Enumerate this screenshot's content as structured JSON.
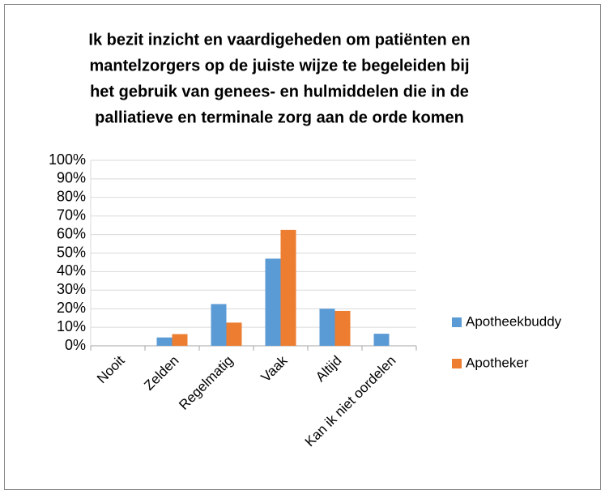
{
  "chart_data": {
    "type": "bar",
    "title": [
      "Ik bezit inzicht en vaardigeheden om patiënten en",
      "mantelzorgers op de juiste wijze te begeleiden bij",
      "het gebruik van genees- en hulmiddelen die in de",
      "palliatieve en terminale zorg aan de orde komen"
    ],
    "categories": [
      "Nooit",
      "Zelden",
      "Regelmatig",
      "Vaak",
      "Altijd",
      "Kan ik niet oordelen"
    ],
    "series": [
      {
        "name": "Apotheekbuddy",
        "color": "#5b9bd5",
        "values": [
          0,
          4.5,
          22.5,
          47,
          20,
          6.5
        ]
      },
      {
        "name": "Apotheker",
        "color": "#ed7d31",
        "values": [
          0,
          6.3,
          12.5,
          62.5,
          18.8,
          0
        ]
      }
    ],
    "ylim": [
      0,
      100
    ],
    "yticks": [
      {
        "value": 0,
        "label": "0%"
      },
      {
        "value": 10,
        "label": "10%"
      },
      {
        "value": 20,
        "label": "20%"
      },
      {
        "value": 30,
        "label": "30%"
      },
      {
        "value": 40,
        "label": "40%"
      },
      {
        "value": 50,
        "label": "50%"
      },
      {
        "value": 60,
        "label": "60%"
      },
      {
        "value": 70,
        "label": "70%"
      },
      {
        "value": 80,
        "label": "80%"
      },
      {
        "value": 90,
        "label": "90%"
      },
      {
        "value": 100,
        "label": "100%"
      }
    ],
    "grid": true,
    "legend": "right"
  }
}
